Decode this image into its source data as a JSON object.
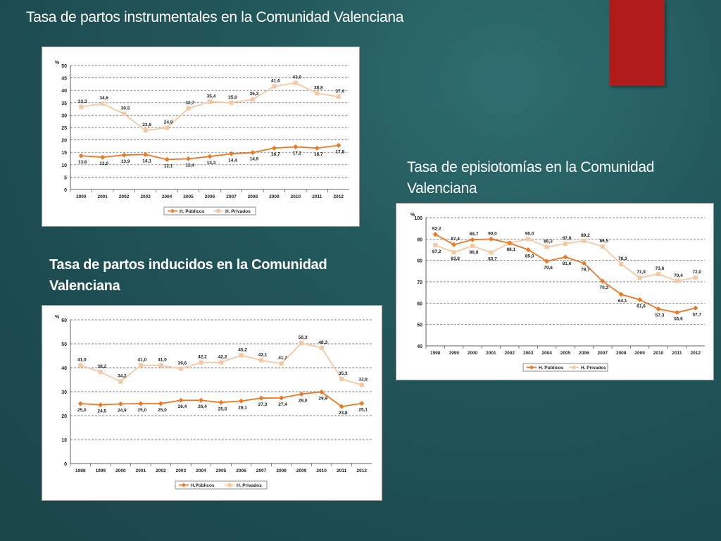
{
  "slide": {
    "title": "Tasa de partos instrumentales en la Comunidad Valenciana",
    "episio_title_line1": "Tasa de episiotomías en la Comunidad",
    "episio_title_line2": "Valenciana",
    "induced_title_line1": "Tasa de partos inducidos en la Comunidad",
    "induced_title_line2": "Valenciana",
    "accent_color": "#b01a1a",
    "background_color": "#1f5154"
  },
  "chart_data": [
    {
      "id": "instrumental",
      "type": "line",
      "ylabel": "%",
      "ylim": [
        0,
        50
      ],
      "yticks": [
        0,
        5,
        10,
        15,
        20,
        25,
        30,
        35,
        40,
        45,
        50
      ],
      "grid": true,
      "legend_position": "bottom",
      "categories": [
        "2000",
        "2001",
        "2002",
        "2003",
        "2004",
        "2005",
        "2006",
        "2007",
        "2008",
        "2009",
        "2010",
        "2011",
        "2012"
      ],
      "series": [
        {
          "name": "H. Públicos",
          "color": "#ee7722",
          "marker": "diamond",
          "values": [
            13.6,
            13.0,
            13.9,
            14.1,
            12.1,
            12.4,
            13.3,
            14.4,
            14.9,
            16.7,
            17.2,
            16.7,
            17.8
          ],
          "labels": [
            "13,6",
            "13,0",
            "13,9",
            "14,1",
            "12,1",
            "12,4",
            "13,3",
            "14,4",
            "14,9",
            "16,7",
            "17,2",
            "16,7",
            "17,8"
          ]
        },
        {
          "name": "H. Privados",
          "color": "#f6c8a2",
          "marker": "square",
          "values": [
            33.3,
            34.6,
            30.5,
            23.8,
            24.9,
            32.7,
            35.4,
            35.0,
            36.3,
            41.6,
            43.0,
            38.8,
            37.4
          ],
          "labels": [
            "33,3",
            "34,6",
            "30,5",
            "23,8",
            "24,9",
            "32,7",
            "35,4",
            "35,0",
            "36,3",
            "41,6",
            "43,0",
            "38,8",
            "37,4"
          ]
        }
      ]
    },
    {
      "id": "episiotomia",
      "type": "line",
      "ylabel": "%",
      "ylim": [
        40,
        100
      ],
      "yticks": [
        40,
        50,
        60,
        70,
        80,
        90,
        100
      ],
      "grid": true,
      "legend_position": "bottom",
      "categories": [
        "1998",
        "1999",
        "2000",
        "2001",
        "2002",
        "2003",
        "2004",
        "2005",
        "2006",
        "2007",
        "2008",
        "2009",
        "2010",
        "2011",
        "2012"
      ],
      "series": [
        {
          "name": "H. Públicos",
          "color": "#ee7722",
          "marker": "diamond",
          "values": [
            92.2,
            87.4,
            89.7,
            90.0,
            88.1,
            85.0,
            79.6,
            81.6,
            78.7,
            70.3,
            64.1,
            61.6,
            57.3,
            55.6,
            57.7
          ],
          "labels": [
            "92,2",
            "87,4",
            "89,7",
            "90,0",
            "88,1",
            "85,0",
            "79,6",
            "81,6",
            "78,7",
            "70,3",
            "64,1",
            "61,6",
            "57,3",
            "55,6",
            "57,7"
          ]
        },
        {
          "name": "H. Privados",
          "color": "#f6c8a2",
          "marker": "square",
          "values": [
            87.2,
            83.8,
            86.8,
            83.7,
            88.1,
            90.0,
            86.3,
            87.8,
            89.2,
            86.5,
            78.3,
            71.9,
            73.6,
            70.4,
            72.0
          ],
          "labels": [
            "87,2",
            "83,8",
            "86,8",
            "83,7",
            "",
            "90,0",
            "86,3",
            "87,8",
            "89,2",
            "86,5",
            "78,3",
            "71,9",
            "73,6",
            "70,4",
            "72,0"
          ]
        }
      ]
    },
    {
      "id": "inducidos",
      "type": "line",
      "ylabel": "%",
      "ylim": [
        0,
        60
      ],
      "yticks": [
        0,
        10,
        20,
        30,
        40,
        50,
        60
      ],
      "grid": true,
      "legend_position": "bottom",
      "categories": [
        "1998",
        "1999",
        "2000",
        "2001",
        "2002",
        "2003",
        "2004",
        "2005",
        "2006",
        "2007",
        "2008",
        "2009",
        "2010",
        "2011",
        "2012"
      ],
      "series": [
        {
          "name": "H.Públicos",
          "color": "#ee7722",
          "marker": "diamond",
          "values": [
            25.0,
            24.5,
            24.9,
            25.0,
            25.0,
            26.4,
            26.4,
            25.5,
            26.1,
            27.3,
            27.4,
            29.0,
            29.9,
            23.8,
            25.1
          ],
          "labels": [
            "25,0",
            "24,5",
            "24,9",
            "25,0",
            "25,0",
            "26,4",
            "26,4",
            "25,5",
            "26,1",
            "27,3",
            "27,4",
            "29,0",
            "29,9",
            "23,8",
            "25,1"
          ]
        },
        {
          "name": "H. Privados",
          "color": "#f6c8a2",
          "marker": "square",
          "values": [
            41.0,
            38.2,
            34.2,
            41.0,
            41.0,
            39.6,
            42.2,
            42.2,
            45.2,
            43.1,
            41.7,
            50.3,
            48.3,
            35.3,
            32.8
          ],
          "labels": [
            "41,0",
            "38,2",
            "34,2",
            "41,0",
            "41,0",
            "39,6",
            "42,2",
            "42,2",
            "45,2",
            "43,1",
            "41,7",
            "50,3",
            "48,3",
            "35,3",
            "32,8"
          ]
        }
      ]
    }
  ]
}
